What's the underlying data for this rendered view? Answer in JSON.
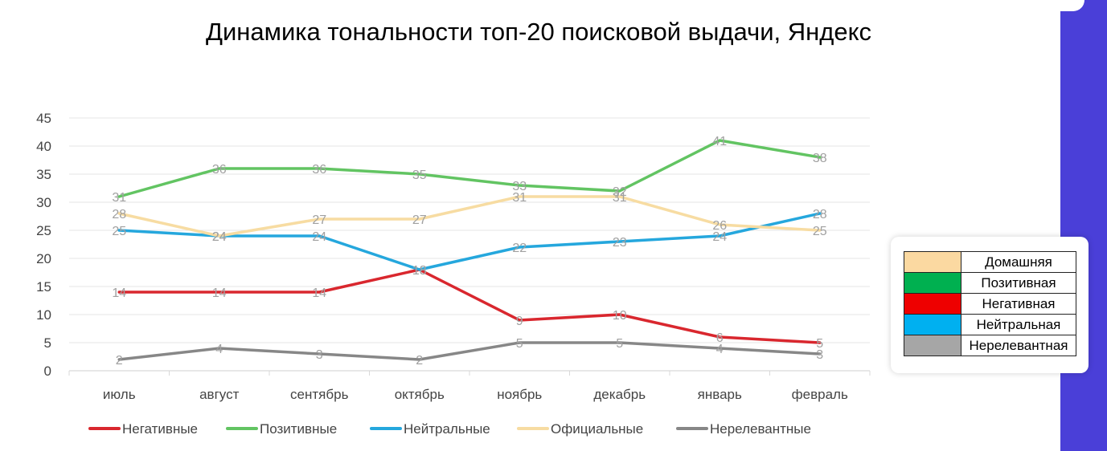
{
  "title": "Динамика тональности топ-20 поисковой выдачи, Яндекс",
  "chart_data": {
    "type": "line",
    "categories": [
      "июль",
      "август",
      "сентябрь",
      "октябрь",
      "ноябрь",
      "декабрь",
      "январь",
      "февраль"
    ],
    "ylim": [
      0,
      45
    ],
    "yticks": [
      0,
      5,
      10,
      15,
      20,
      25,
      30,
      35,
      40,
      45
    ],
    "grid": true,
    "legend_position": "bottom",
    "series": [
      {
        "name": "Негативные",
        "color": "#d9272e",
        "values": [
          14,
          14,
          14,
          18,
          9,
          10,
          6,
          5
        ]
      },
      {
        "name": "Позитивные",
        "color": "#62c462",
        "values": [
          31,
          36,
          36,
          35,
          33,
          32,
          41,
          38
        ]
      },
      {
        "name": "Нейтральные",
        "color": "#25a7dd",
        "values": [
          25,
          24,
          24,
          18,
          22,
          23,
          24,
          28
        ]
      },
      {
        "name": "Официальные",
        "color": "#f7dca2",
        "values": [
          28,
          24,
          27,
          27,
          31,
          31,
          26,
          25
        ]
      },
      {
        "name": "Нерелевантные",
        "color": "#878787",
        "values": [
          2,
          4,
          3,
          2,
          5,
          5,
          4,
          3
        ]
      }
    ]
  },
  "legend_table": [
    {
      "label": "Домашняя",
      "color": "#fbd9a1"
    },
    {
      "label": "Позитивная",
      "color": "#00b050"
    },
    {
      "label": "Негативная",
      "color": "#ee0000"
    },
    {
      "label": "Нейтральная",
      "color": "#00b0f0"
    },
    {
      "label": "Нерелевантная",
      "color": "#a6a6a6"
    }
  ]
}
